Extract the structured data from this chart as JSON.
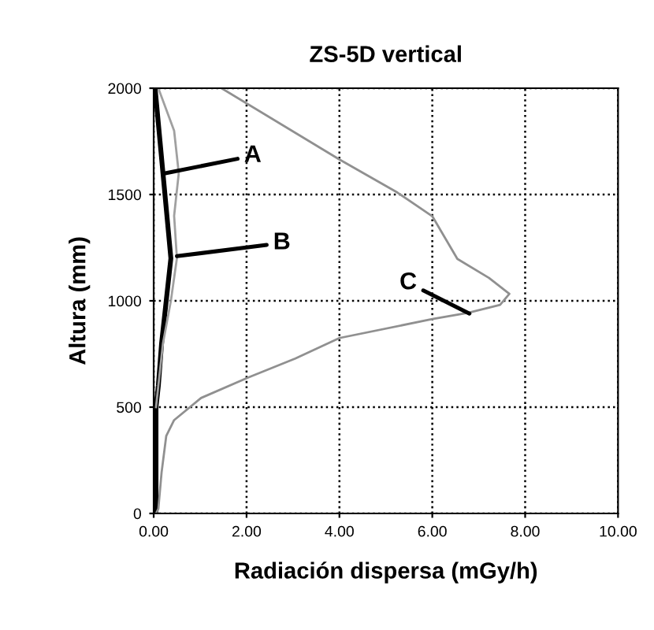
{
  "chart_data": {
    "type": "line",
    "title": "ZS-5D vertical",
    "xlabel": "Radiación dispersa (mGy/h)",
    "ylabel": "Altura (mm)",
    "xlim": [
      0,
      10
    ],
    "ylim": [
      0,
      2000
    ],
    "xticks": [
      {
        "value": 0,
        "label": "0.00"
      },
      {
        "value": 2,
        "label": "2.00"
      },
      {
        "value": 4,
        "label": "4.00"
      },
      {
        "value": 6,
        "label": "6.00"
      },
      {
        "value": 8,
        "label": "8.00"
      },
      {
        "value": 10,
        "label": "10.00"
      }
    ],
    "yticks": [
      0,
      500,
      1000,
      1500,
      2000
    ],
    "grid": true,
    "line_style": "solid",
    "marker": "none",
    "series": [
      {
        "color": "#000000",
        "x": [
          0.05,
          0.05,
          0.05,
          0.1,
          0.17,
          0.27,
          0.37,
          0.2,
          0.03
        ],
        "values": [
          0,
          300,
          500,
          600,
          800,
          1000,
          1200,
          1600,
          2000
        ]
      },
      {
        "color": "#a0a0a0",
        "x": [
          0.05,
          0.1,
          0.2,
          0.37,
          0.5,
          0.44,
          0.54,
          0.44,
          0.1
        ],
        "values": [
          500,
          600,
          800,
          1000,
          1200,
          1400,
          1600,
          1800,
          2000
        ]
      },
      {
        "color": "#909090",
        "x": [
          0.05,
          0.1,
          0.17,
          0.27,
          0.44,
          1.02,
          2.03,
          3.05,
          4.0,
          6.0,
          6.78,
          7.46,
          7.66,
          7.22,
          6.54,
          6.0,
          5.25,
          4.0,
          1.46
        ],
        "values": [
          0,
          22,
          193,
          364,
          439,
          543,
          639,
          729,
          825,
          914,
          944,
          981,
          1033,
          1108,
          1197,
          1398,
          1509,
          1665,
          2000
        ]
      }
    ],
    "annotations": [
      {
        "text": "A",
        "x": 0.25,
        "y": 1600
      },
      {
        "text": "B",
        "x": 0.5,
        "y": 1210
      },
      {
        "text": "C",
        "x": 6.8,
        "y": 940
      }
    ]
  }
}
